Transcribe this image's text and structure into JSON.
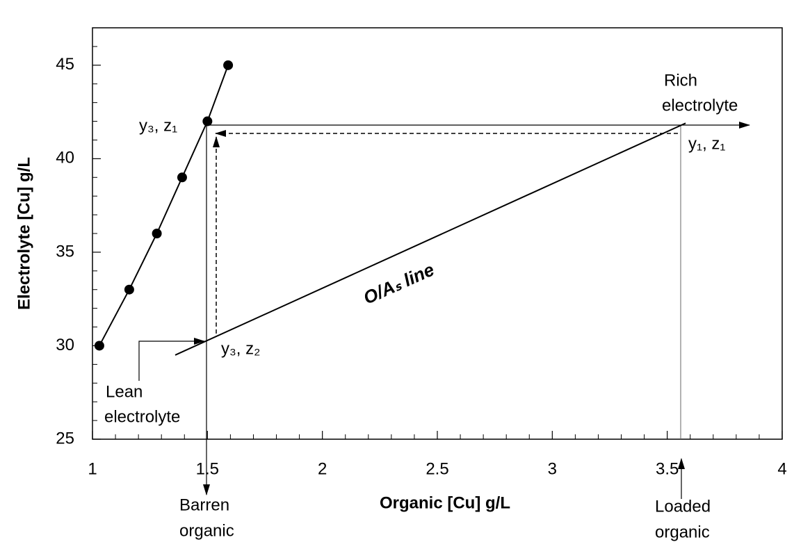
{
  "chart_data": {
    "type": "line",
    "x_label": "Organic [Cu] g/L",
    "y_label": "Electrolyte [Cu] g/L",
    "xlim": [
      1,
      4
    ],
    "xticks": [
      1,
      1.5,
      2,
      2.5,
      3,
      3.5,
      4
    ],
    "xminorticks": [
      1.1,
      1.2,
      1.3,
      1.4,
      1.6,
      1.7,
      1.8,
      1.9,
      2.1,
      2.2,
      2.3,
      2.4,
      2.6,
      2.7,
      2.8,
      2.9,
      3.1,
      3.2,
      3.3,
      3.4,
      3.6,
      3.7,
      3.8,
      3.9
    ],
    "ylim": [
      25,
      47
    ],
    "yticks": [
      25,
      30,
      35,
      40,
      45
    ],
    "yminorticks": [
      26,
      27,
      28,
      29,
      31,
      32,
      33,
      34,
      36,
      37,
      38,
      39,
      41,
      42,
      43,
      44,
      46
    ],
    "series": [
      {
        "color": "#000000",
        "marker": true,
        "x": [
          1.03,
          1.16,
          1.28,
          1.39,
          1.5,
          1.59
        ],
        "values": [
          30,
          33,
          36,
          39,
          42,
          45
        ]
      },
      {
        "color": "#000000",
        "marker": false,
        "x": [
          1.36,
          3.58
        ],
        "values": [
          29.5,
          41.9
        ]
      }
    ],
    "annotations": {
      "y3_z1": "y₃, z₁",
      "rich_electrolyte": [
        "Rich",
        "electrolyte"
      ],
      "y1_z1": "y₁, z₁",
      "oa_line": "O/Aₛ line",
      "y3_z2": "y₃, z₂",
      "lean_electrolyte": [
        "Lean",
        "electrolyte"
      ],
      "barren_organic": [
        "Barren",
        "organic"
      ],
      "loaded_organic": [
        "Loaded",
        "organic"
      ]
    }
  }
}
